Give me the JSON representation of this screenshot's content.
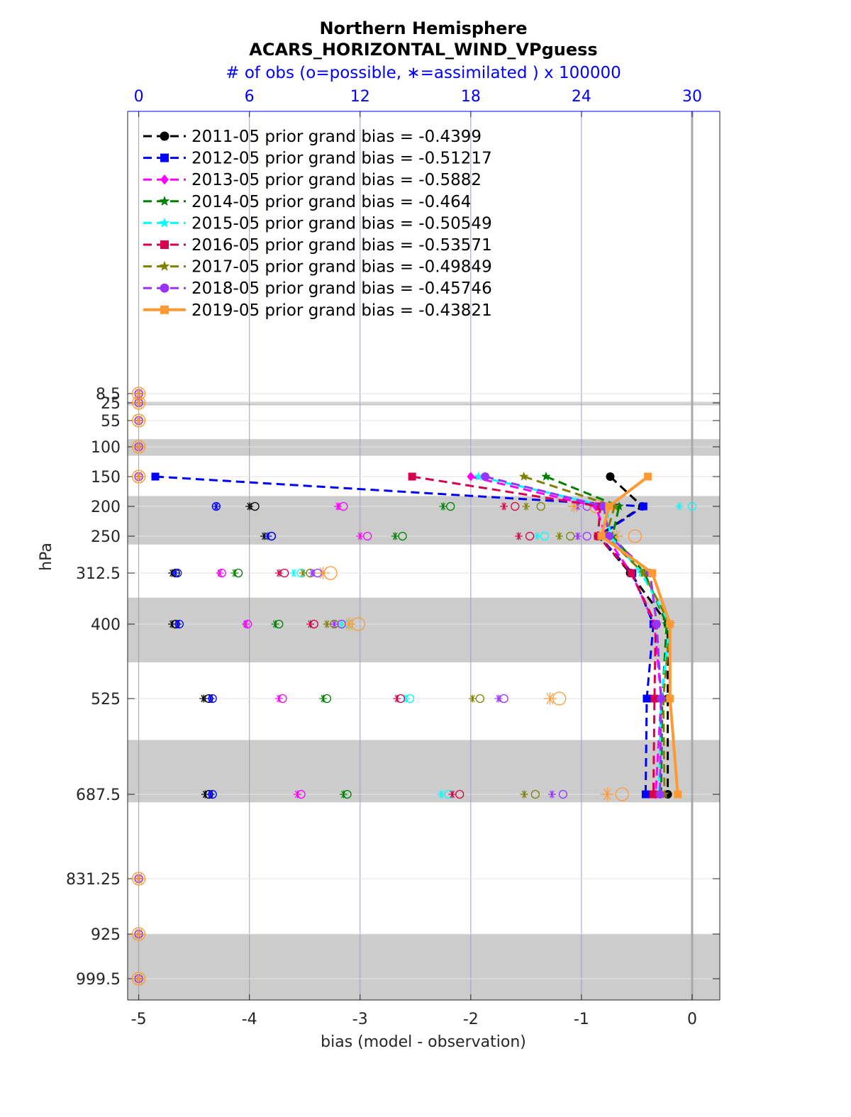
{
  "chart_data": {
    "type": "line",
    "title": "Northern Hemisphere",
    "subtitle": "ACARS_HORIZONTAL_WIND_VPguess",
    "top_axis_label": "# of obs (o=possible, ∗=assimilated ) x 100000",
    "xlabel": "bias (model - observation)",
    "ylabel": "hPa",
    "xlim": [
      -5.1,
      0.25
    ],
    "x_ticks": [
      "-5",
      "-4",
      "-3",
      "-2",
      "-1",
      "0"
    ],
    "top_xlim": [
      -0.6,
      31.5
    ],
    "top_ticks": [
      "0",
      "6",
      "12",
      "18",
      "24",
      "30"
    ],
    "y_scale": "log-like pressure, inverted",
    "levels": [
      8.5,
      25,
      55,
      100,
      150,
      200,
      250,
      312.5,
      400,
      525,
      687.5,
      831.25,
      925,
      999.5
    ],
    "level_labels": [
      "8.5",
      "25",
      "55",
      "100",
      "150",
      "200",
      "250",
      "312.5",
      "400",
      "525",
      "687.5",
      "831.25",
      "925",
      "999.5"
    ],
    "shaded_bands": [
      [
        22,
        28
      ],
      [
        84,
        113
      ],
      [
        181,
        263
      ],
      [
        352,
        460
      ],
      [
        590,
        700
      ],
      [
        925,
        1025
      ]
    ],
    "grid": true,
    "legend_position": "top-left",
    "series": [
      {
        "name": "2011-05 prior grand bias = -0.4399",
        "color": "#000000",
        "marker": "circle",
        "style": "dashed",
        "bias": [
          null,
          null,
          null,
          null,
          -0.74,
          -0.45,
          -0.85,
          -0.56,
          -0.22,
          -0.22,
          -0.22,
          null,
          null,
          null
        ],
        "obs_possible": [
          0,
          0,
          0,
          0,
          0,
          6.3,
          7.2,
          2.0,
          2.0,
          3.8,
          3.8,
          0,
          0,
          0
        ],
        "obs_assimilated": [
          0,
          0,
          0,
          0,
          0,
          6.0,
          6.8,
          1.8,
          1.8,
          3.5,
          3.6,
          0,
          0,
          0
        ]
      },
      {
        "name": "2012-05 prior grand bias = -0.51217",
        "color": "#0000ff",
        "marker": "square",
        "style": "dashed",
        "bias": [
          null,
          null,
          null,
          null,
          -4.85,
          -0.44,
          -0.84,
          -0.54,
          -0.35,
          -0.41,
          -0.42,
          null,
          null,
          null
        ],
        "obs_possible": [
          0,
          0,
          0,
          0,
          0,
          4.2,
          7.2,
          2.1,
          2.2,
          4.0,
          4.0,
          0,
          0,
          0
        ],
        "obs_assimilated": [
          0,
          0,
          0,
          0,
          0,
          4.2,
          7.0,
          2.0,
          2.1,
          3.9,
          3.9,
          0,
          0,
          0
        ]
      },
      {
        "name": "2013-05 prior grand bias = -0.5882",
        "color": "#ff00ff",
        "marker": "diamond",
        "style": "dashed",
        "bias": [
          null,
          null,
          null,
          null,
          -2.0,
          -0.87,
          -0.78,
          -0.55,
          -0.34,
          -0.28,
          -0.33,
          null,
          null,
          null
        ],
        "obs_possible": [
          0,
          0,
          0,
          0,
          0,
          11.1,
          12.4,
          4.5,
          5.9,
          7.8,
          8.8,
          0,
          0,
          0
        ],
        "obs_assimilated": [
          0,
          0,
          0,
          0,
          0,
          10.8,
          12.0,
          4.4,
          5.8,
          7.6,
          8.6,
          0,
          0,
          0
        ]
      },
      {
        "name": "2014-05 prior grand bias = -0.464",
        "color": "#008000",
        "marker": "star",
        "style": "dashed",
        "bias": [
          null,
          null,
          null,
          null,
          -1.32,
          -0.66,
          -0.72,
          -0.43,
          -0.23,
          -0.27,
          -0.28,
          null,
          null,
          null
        ],
        "obs_possible": [
          0,
          0,
          0,
          0,
          0,
          16.9,
          14.3,
          5.4,
          7.6,
          10.2,
          11.3,
          0,
          0,
          0
        ],
        "obs_assimilated": [
          0,
          0,
          0,
          0,
          0,
          16.5,
          13.9,
          5.2,
          7.4,
          10.0,
          11.1,
          0,
          0,
          0
        ]
      },
      {
        "name": "2015-05 prior grand bias = -0.50549",
        "color": "#00ffff",
        "marker": "star",
        "style": "dashed",
        "bias": [
          null,
          null,
          null,
          null,
          -1.93,
          -0.77,
          -0.74,
          -0.46,
          -0.2,
          -0.28,
          -0.3,
          null,
          null,
          null
        ],
        "obs_possible": [
          0,
          0,
          0,
          0,
          0,
          30.0,
          22.0,
          8.8,
          11.4,
          14.7,
          16.8,
          0,
          0,
          0
        ],
        "obs_assimilated": [
          0,
          0,
          0,
          0,
          0,
          29.3,
          21.6,
          8.4,
          11.0,
          14.5,
          16.4,
          0,
          0,
          0
        ]
      },
      {
        "name": "2016-05 prior grand bias = -0.53571",
        "color": "#d6004d",
        "marker": "square",
        "style": "dashed",
        "bias": [
          null,
          null,
          null,
          null,
          -2.53,
          -0.83,
          -0.85,
          -0.55,
          -0.33,
          -0.34,
          -0.35,
          null,
          null,
          null
        ],
        "obs_possible": [
          0,
          0,
          0,
          0,
          0,
          20.4,
          21.2,
          7.9,
          9.5,
          14.2,
          17.4,
          0,
          0,
          0
        ],
        "obs_assimilated": [
          0,
          0,
          0,
          0,
          0,
          19.8,
          20.6,
          7.6,
          9.3,
          14.0,
          17.0,
          0,
          0,
          0
        ]
      },
      {
        "name": "2017-05 prior grand bias = -0.49849",
        "color": "#808000",
        "marker": "star",
        "style": "dashed",
        "bias": [
          null,
          null,
          null,
          null,
          -1.52,
          -0.7,
          -0.78,
          -0.44,
          -0.2,
          -0.26,
          -0.25,
          null,
          null,
          null
        ],
        "obs_possible": [
          0,
          0,
          0,
          0,
          0,
          21.8,
          23.4,
          9.3,
          10.6,
          18.5,
          21.5,
          0,
          0,
          0
        ],
        "obs_assimilated": [
          0,
          0,
          0,
          0,
          0,
          21.0,
          22.8,
          8.9,
          10.2,
          18.1,
          20.9,
          0,
          0,
          0
        ]
      },
      {
        "name": "2018-05 prior grand bias = -0.45746",
        "color": "#9933ff",
        "marker": "circle",
        "style": "dashed",
        "bias": [
          null,
          null,
          null,
          null,
          -1.87,
          -0.8,
          -0.75,
          -0.38,
          -0.32,
          -0.28,
          -0.29,
          null,
          null,
          null
        ],
        "obs_possible": [
          0,
          0,
          0,
          0,
          0,
          24.3,
          24.3,
          9.7,
          11.0,
          19.8,
          23.0,
          0,
          0,
          0
        ],
        "obs_assimilated": [
          0,
          0,
          0,
          0,
          0,
          23.8,
          23.8,
          9.4,
          10.6,
          19.5,
          22.4,
          0,
          0,
          0
        ]
      },
      {
        "name": "2019-05 prior grand bias = -0.43821",
        "color": "#ff9933",
        "marker": "square",
        "style": "solid",
        "bias": [
          null,
          null,
          null,
          null,
          -0.4,
          -0.75,
          -0.82,
          -0.36,
          -0.2,
          -0.2,
          -0.13,
          null,
          null,
          null
        ],
        "obs_possible": [
          0,
          0,
          0,
          0,
          0,
          24.8,
          26.9,
          10.4,
          11.9,
          22.8,
          26.2,
          0,
          0,
          0
        ],
        "obs_assimilated": [
          0,
          0,
          0,
          0,
          0,
          23.6,
          25.9,
          10.0,
          11.4,
          22.3,
          25.4,
          0,
          0,
          0
        ]
      }
    ]
  }
}
